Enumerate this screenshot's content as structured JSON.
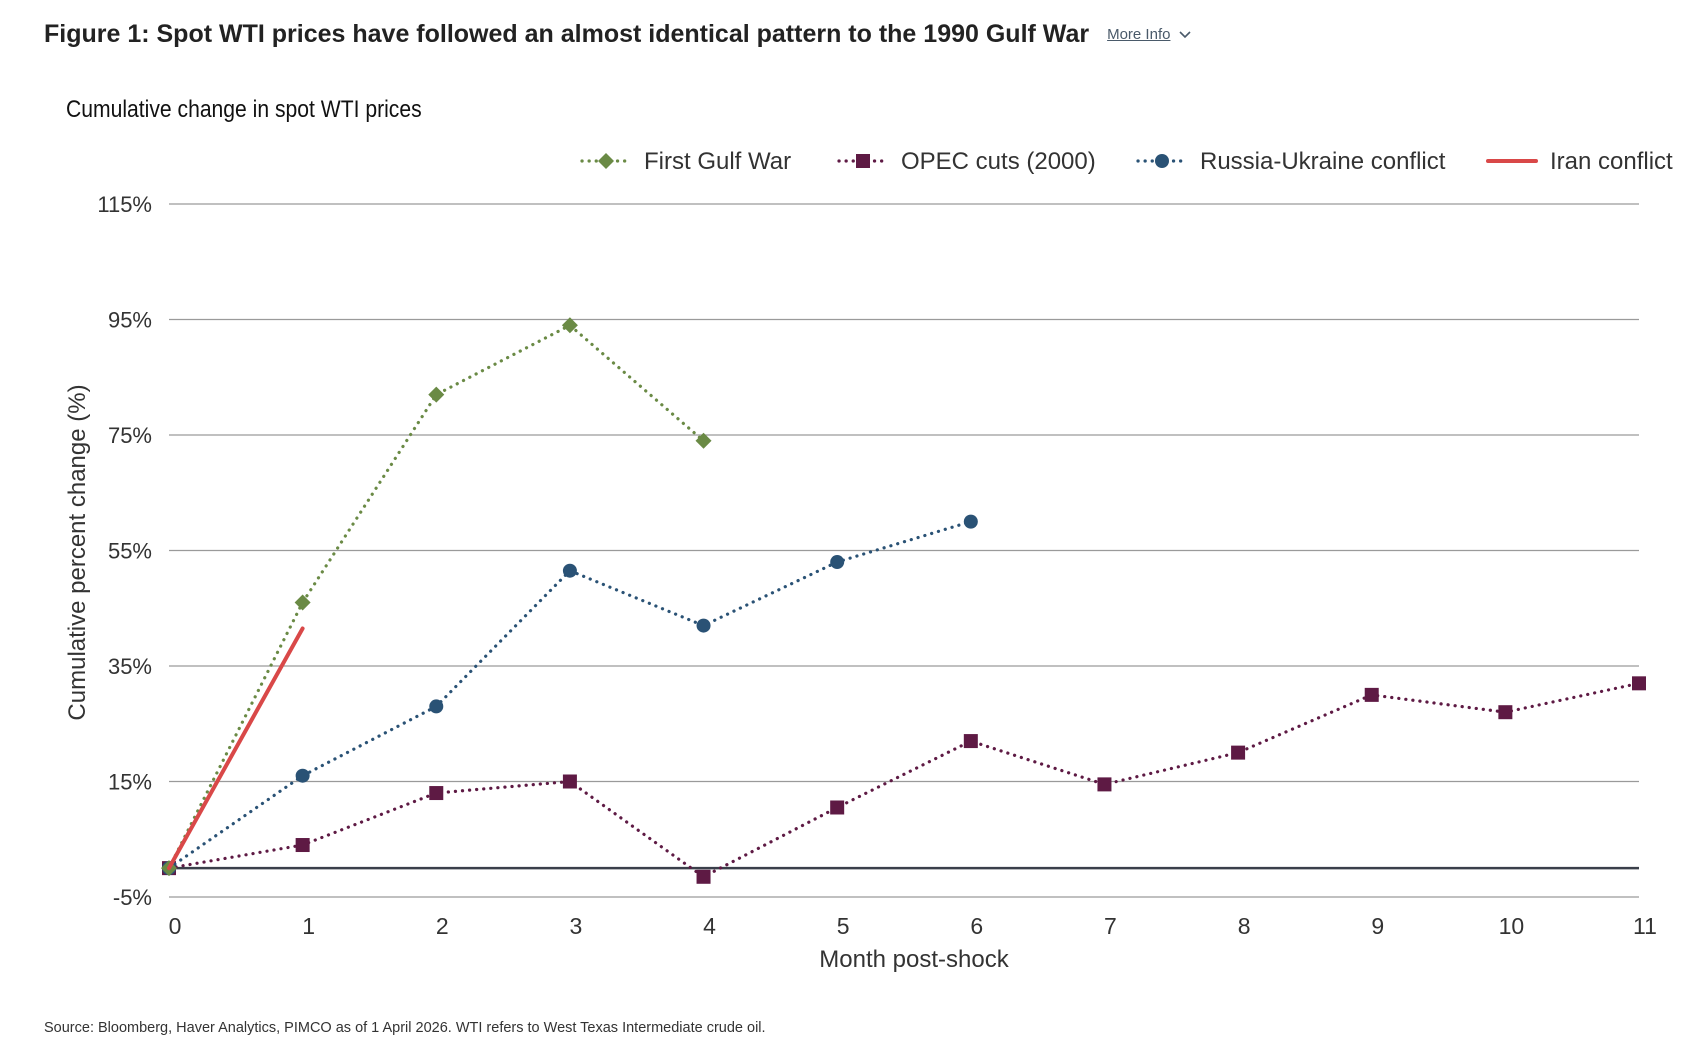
{
  "header": {
    "title": "Figure 1: Spot WTI prices have followed an almost identical pattern to the 1990 Gulf War",
    "more_info_label": "More Info"
  },
  "footer": {
    "source": "Source: Bloomberg, Haver Analytics, PIMCO as of 1 April 2026. WTI refers to West Texas Intermediate crude oil."
  },
  "chart_data": {
    "type": "line",
    "title": "Cumulative change in spot WTI prices",
    "xlabel": "Month post-shock",
    "ylabel": "Cumulative percent change (%)",
    "x": [
      0,
      1,
      2,
      3,
      4,
      5,
      6,
      7,
      8,
      9,
      10,
      11
    ],
    "xlim": [
      0,
      11
    ],
    "ylim": [
      -5,
      115
    ],
    "yticks": [
      -5,
      15,
      35,
      55,
      75,
      95,
      115
    ],
    "ytick_labels": [
      "-5%",
      "15%",
      "35%",
      "55%",
      "75%",
      "95%",
      "115%"
    ],
    "xtick_labels": [
      "0",
      "1",
      "2",
      "3",
      "4",
      "5",
      "6",
      "7",
      "8",
      "9",
      "10",
      "11"
    ],
    "grid": true,
    "legend_position": "top-right",
    "series": [
      {
        "name": "First Gulf War",
        "color": "#6a8a45",
        "style": "dotted",
        "marker": "diamond",
        "x": [
          0,
          1,
          2,
          3,
          4
        ],
        "y": [
          0,
          46,
          82,
          94,
          74
        ]
      },
      {
        "name": "OPEC cuts (2000)",
        "color": "#5e1a44",
        "style": "dotted",
        "marker": "square",
        "x": [
          0,
          1,
          2,
          3,
          4,
          5,
          6,
          7,
          8,
          9,
          10,
          11
        ],
        "y": [
          0,
          4,
          13,
          15,
          -1.5,
          10.5,
          22,
          14.5,
          20,
          30,
          27,
          32
        ]
      },
      {
        "name": "Russia-Ukraine conflict",
        "color": "#2a5275",
        "style": "dotted",
        "marker": "circle",
        "x": [
          0,
          1,
          2,
          3,
          4,
          5,
          6
        ],
        "y": [
          0,
          16,
          28,
          51.5,
          42,
          53,
          60
        ]
      },
      {
        "name": "Iran conflict",
        "color": "#d94848",
        "style": "solid",
        "marker": "none",
        "x": [
          0,
          1
        ],
        "y": [
          0,
          41.5
        ]
      }
    ]
  }
}
